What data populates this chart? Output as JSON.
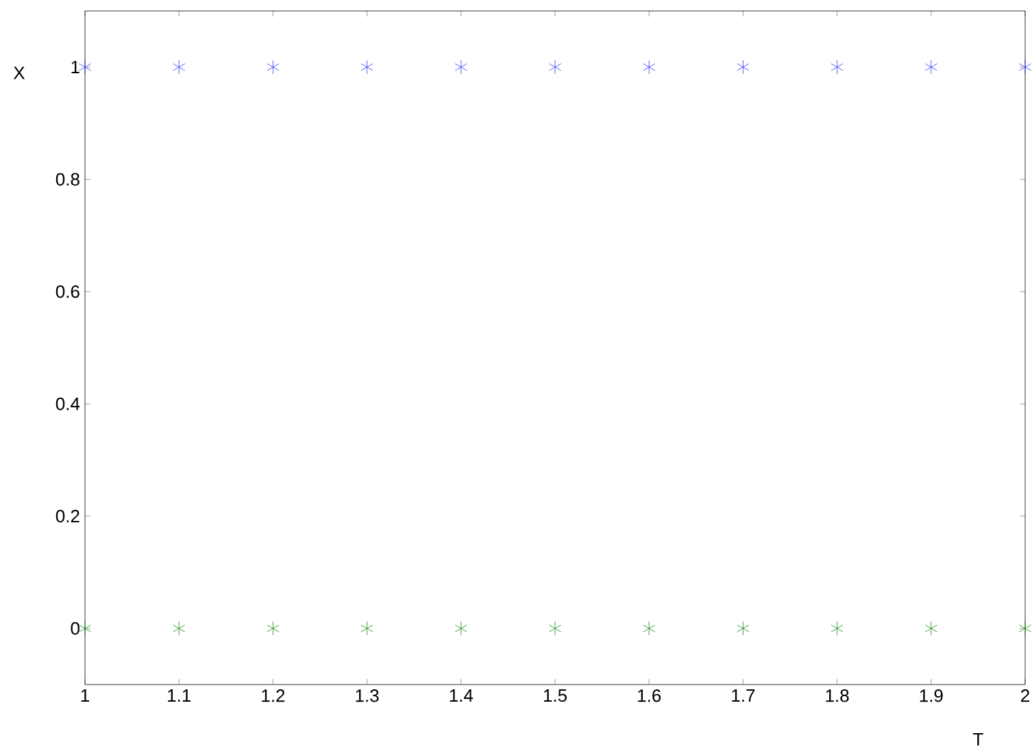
{
  "chart_data": {
    "type": "scatter",
    "xlabel": "T",
    "ylabel": "X",
    "x": [
      1,
      1.1,
      1.2,
      1.3,
      1.4,
      1.5,
      1.6,
      1.7,
      1.8,
      1.9,
      2
    ],
    "series": [
      {
        "color": "#3333ff",
        "values": [
          1,
          1,
          1,
          1,
          1,
          1,
          1,
          1,
          1,
          1,
          1
        ]
      },
      {
        "color": "#118811",
        "values": [
          0,
          0,
          0,
          0,
          0,
          0,
          0,
          0,
          0,
          0,
          0
        ]
      }
    ],
    "xlim": [
      1,
      2
    ],
    "ylim": [
      -0.1,
      1.1
    ],
    "xticks": [
      1,
      1.1,
      1.2,
      1.3,
      1.4,
      1.5,
      1.6,
      1.7,
      1.8,
      1.9,
      2
    ],
    "yticks": [
      0,
      0.2,
      0.4,
      0.6,
      0.8,
      1
    ],
    "marker": "cross",
    "grid": false
  }
}
